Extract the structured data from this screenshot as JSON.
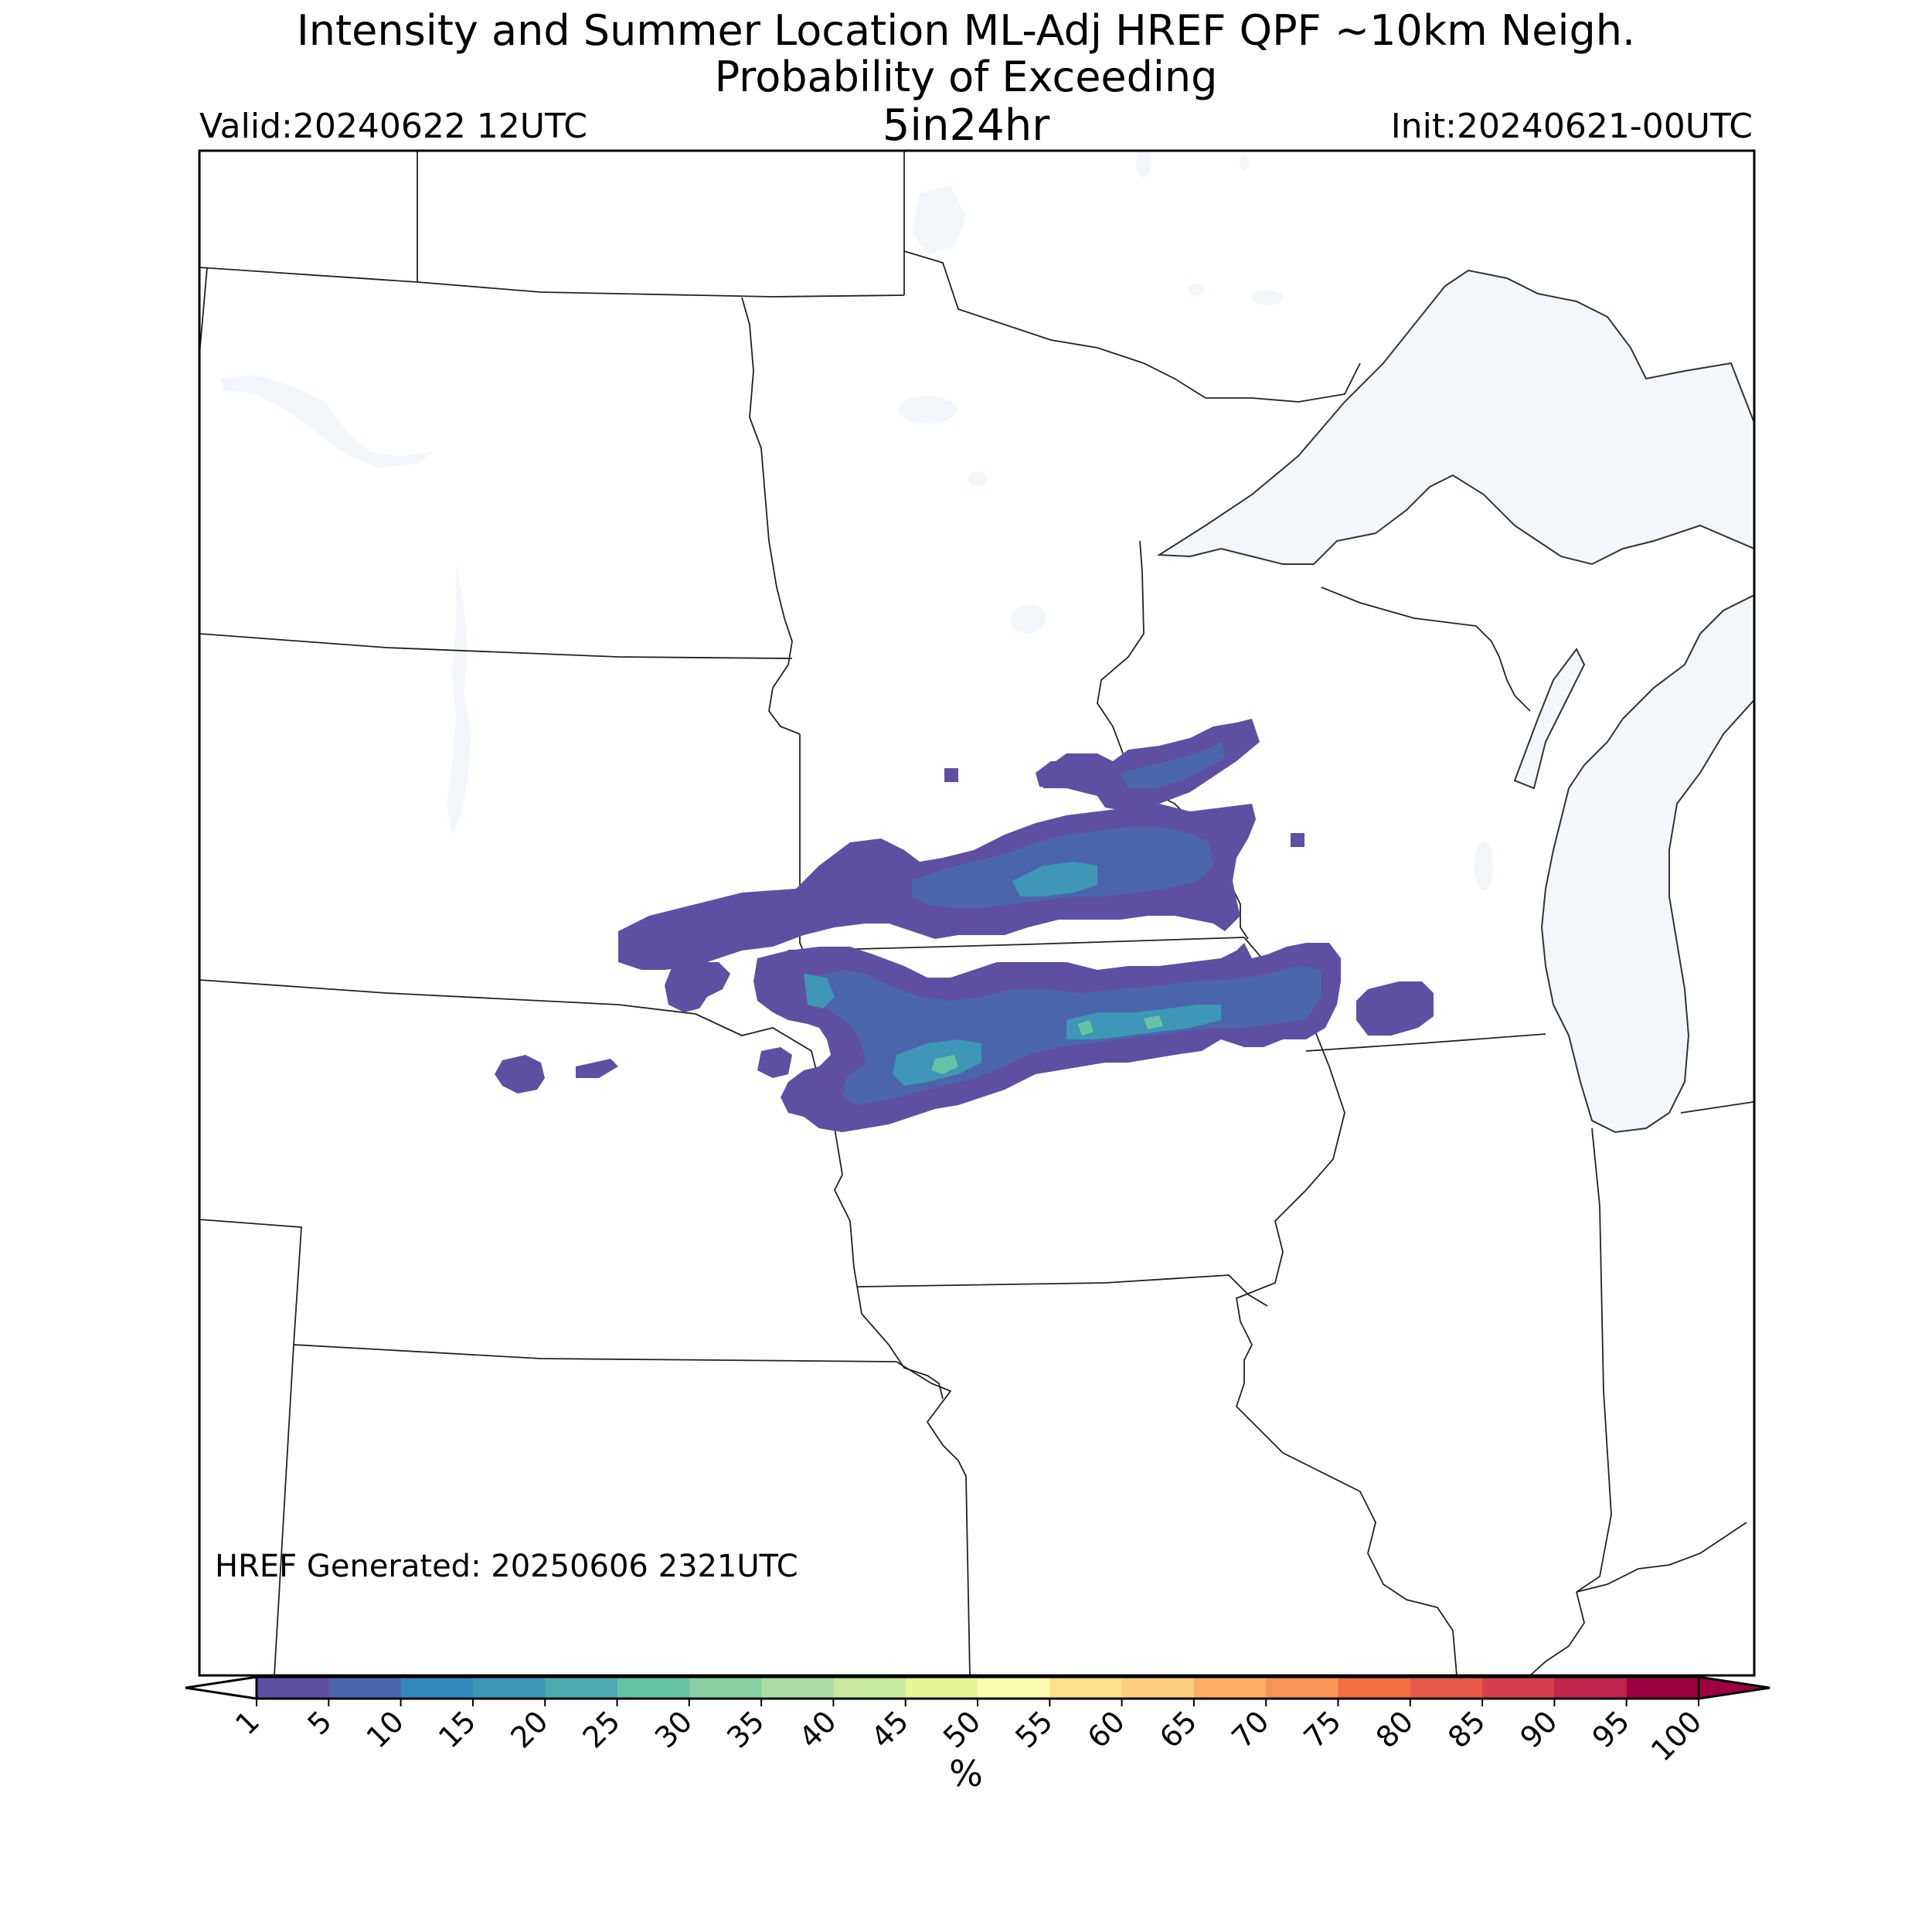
{
  "header": {
    "title_line1": "Intensity and Summer Location ML-Adj HREF QPF ~10km Neigh.",
    "title_line2": "Probability of Exceeding",
    "valid": "Valid:20240622 12UTC",
    "threshold": "5in24hr",
    "init": "Init:20240621-00UTC"
  },
  "footer": {
    "generated": "HREF Generated: 20250606 2321UTC"
  },
  "colorbar": {
    "units": "%",
    "ticks": [
      "1",
      "5",
      "10",
      "15",
      "20",
      "25",
      "30",
      "35",
      "40",
      "45",
      "50",
      "55",
      "60",
      "65",
      "70",
      "75",
      "80",
      "85",
      "90",
      "95",
      "100"
    ],
    "colors": [
      "#5e4fa2",
      "#4b65ad",
      "#3288bd",
      "#3f96b7",
      "#4fa9b0",
      "#66c2a5",
      "#88cfa4",
      "#abdda4",
      "#c9e99e",
      "#e6f598",
      "#fbf9ad",
      "#fee08b",
      "#fed07e",
      "#fdae61",
      "#f99455",
      "#f46d43",
      "#e85a47",
      "#d53e4f",
      "#c0264b",
      "#9e0142"
    ],
    "under_color": "#ffffff",
    "over_color": "#9e0142"
  },
  "map": {
    "water_color": "#f3f6fb",
    "probability_field": [
      {
        "region": "northeast-minnesota-wisconsin-band",
        "max_percent": 15
      },
      {
        "region": "southern-minnesota-band",
        "max_percent": 20
      },
      {
        "region": "northern-iowa-southern-wisconsin-band",
        "max_percent": 25
      },
      {
        "region": "southeast-south-dakota-cells",
        "max_percent": 5
      }
    ]
  }
}
